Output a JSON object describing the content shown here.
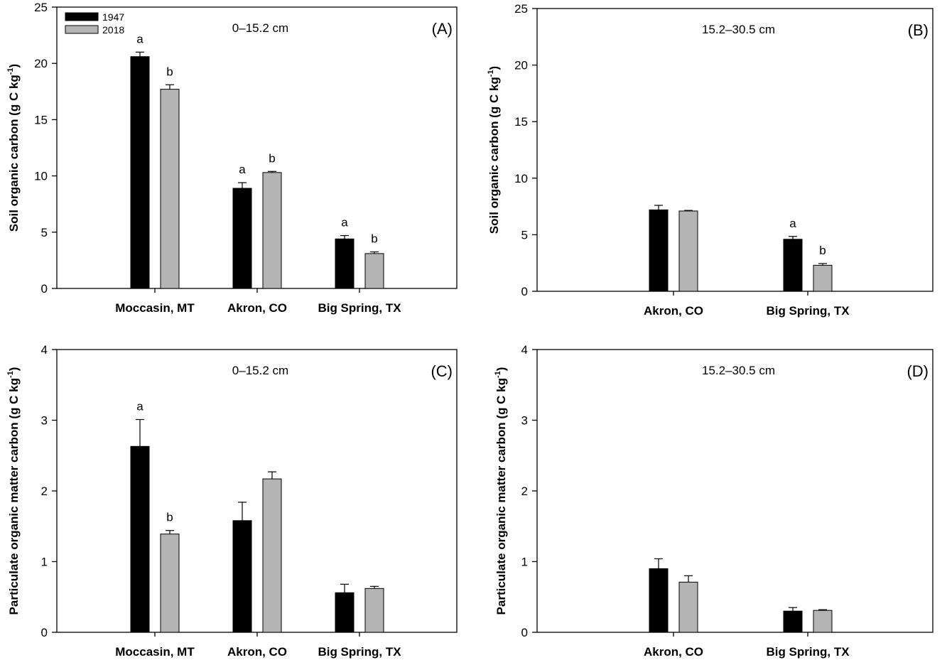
{
  "colors": {
    "y1947": "#000000",
    "y2018": "#b4b4b4",
    "axis": "#000000"
  },
  "legend": {
    "items": [
      "1947",
      "2018"
    ]
  },
  "chart_data": [
    {
      "type": "bar",
      "panel": "(A)",
      "depth": "0–15.2 cm",
      "ylabel": "Soil organic carbon (g C kg",
      "ylabel_sup": "-1",
      "ylabel_close": ")",
      "ylim": [
        0,
        25
      ],
      "yticks": [
        "0",
        "5",
        "10",
        "15",
        "20",
        "25"
      ],
      "yticks_values": [
        0,
        5,
        10,
        15,
        20,
        25
      ],
      "categories": [
        "Moccasin, MT",
        "Akron, CO",
        "Big Spring, TX"
      ],
      "series": [
        {
          "name": "1947",
          "values": [
            20.6,
            8.9,
            4.4
          ],
          "errors": [
            0.4,
            0.5,
            0.3
          ],
          "labels": [
            "a",
            "a",
            "a"
          ]
        },
        {
          "name": "2018",
          "values": [
            17.7,
            10.3,
            3.1
          ],
          "errors": [
            0.4,
            0.1,
            0.15
          ],
          "labels": [
            "b",
            "b",
            "b"
          ]
        }
      ]
    },
    {
      "type": "bar",
      "panel": "(B)",
      "depth": "15.2–30.5 cm",
      "ylabel": "Soil organic carbon (g C kg",
      "ylabel_sup": "-1",
      "ylabel_close": ")",
      "ylim": [
        0,
        25
      ],
      "yticks": [
        "0",
        "5",
        "10",
        "15",
        "20",
        "25"
      ],
      "yticks_values": [
        0,
        5,
        10,
        15,
        20,
        25
      ],
      "categories": [
        "Akron, CO",
        "Big Spring, TX"
      ],
      "series": [
        {
          "name": "1947",
          "values": [
            7.2,
            4.6
          ],
          "errors": [
            0.4,
            0.25
          ],
          "labels": [
            "",
            "a"
          ]
        },
        {
          "name": "2018",
          "values": [
            7.1,
            2.3
          ],
          "errors": [
            0.05,
            0.15
          ],
          "labels": [
            "",
            "b"
          ]
        }
      ]
    },
    {
      "type": "bar",
      "panel": "(C)",
      "depth": "0–15.2 cm",
      "ylabel": "Particulate organic matter carbon (g C kg",
      "ylabel_sup": "-1",
      "ylabel_close": ")",
      "ylim": [
        0,
        4
      ],
      "yticks": [
        "0",
        "1",
        "2",
        "3",
        "4"
      ],
      "yticks_values": [
        0,
        1,
        2,
        3,
        4
      ],
      "categories": [
        "Moccasin, MT",
        "Akron, CO",
        "Big Spring, TX"
      ],
      "series": [
        {
          "name": "1947",
          "values": [
            2.63,
            1.58,
            0.56
          ],
          "errors": [
            0.38,
            0.26,
            0.12
          ],
          "labels": [
            "a",
            "",
            ""
          ]
        },
        {
          "name": "2018",
          "values": [
            1.39,
            2.17,
            0.62
          ],
          "errors": [
            0.05,
            0.1,
            0.03
          ],
          "labels": [
            "b",
            "",
            ""
          ]
        }
      ]
    },
    {
      "type": "bar",
      "panel": "(D)",
      "depth": "15.2–30.5 cm",
      "ylabel": "Particulate organic matter carbon (g C kg",
      "ylabel_sup": "-1",
      "ylabel_close": ")",
      "ylim": [
        0,
        4
      ],
      "yticks": [
        "0",
        "1",
        "2",
        "3",
        "4"
      ],
      "yticks_values": [
        0,
        1,
        2,
        3,
        4
      ],
      "categories": [
        "Akron, CO",
        "Big Spring, TX"
      ],
      "series": [
        {
          "name": "1947",
          "values": [
            0.9,
            0.3
          ],
          "errors": [
            0.14,
            0.05
          ],
          "labels": [
            "",
            ""
          ]
        },
        {
          "name": "2018",
          "values": [
            0.71,
            0.31
          ],
          "errors": [
            0.09,
            0.01
          ],
          "labels": [
            "",
            ""
          ]
        }
      ]
    }
  ]
}
